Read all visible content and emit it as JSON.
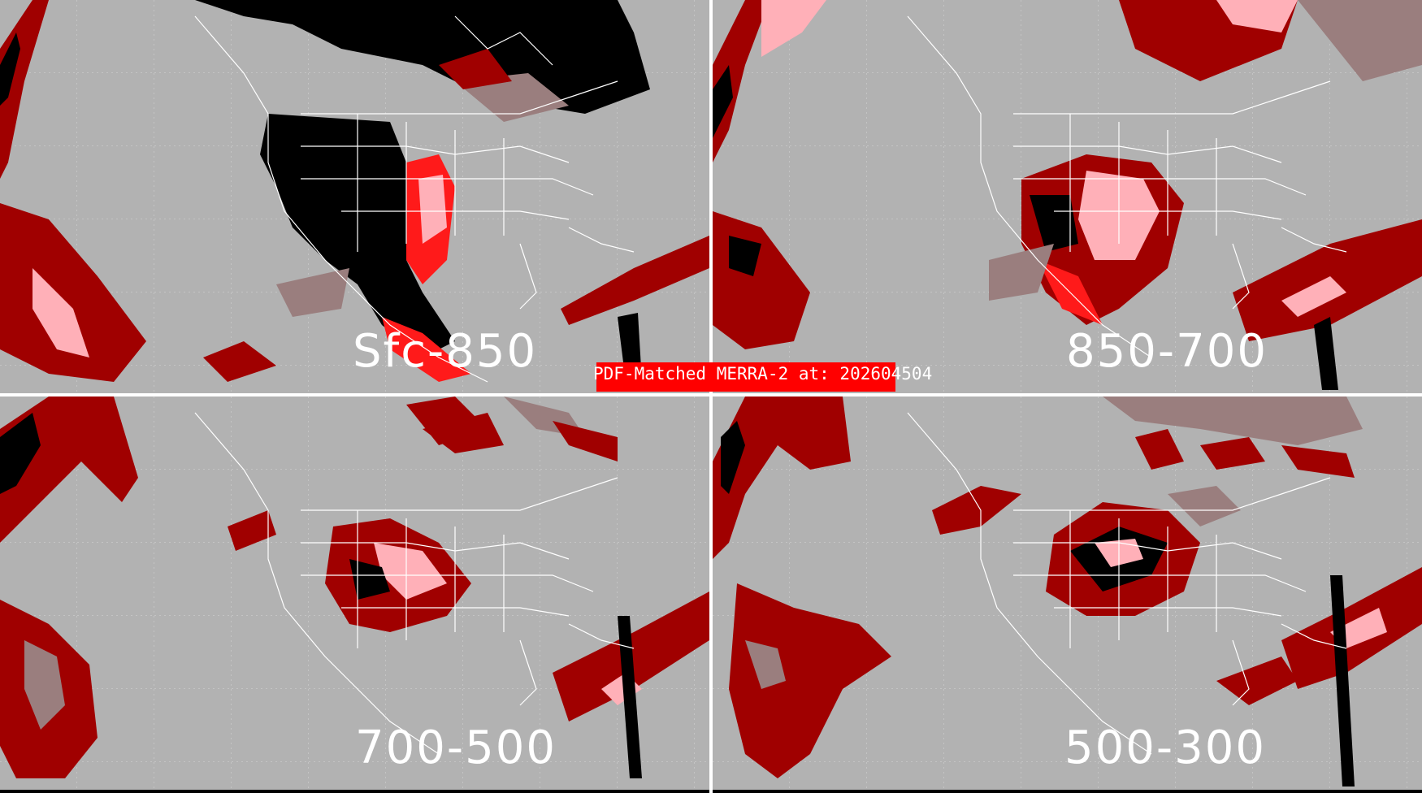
{
  "title": "PDF-Matched MERRA-2 at: 202604504",
  "panels": [
    {
      "label": "Sfc-850"
    },
    {
      "label": "850-700"
    },
    {
      "label": "700-500"
    },
    {
      "label": "500-300"
    }
  ],
  "colors": {
    "background": "#b2b2b2",
    "light": "#9a7e7e",
    "dark_red": "#a00000",
    "red": "#ff1a1a",
    "pink": "#ffb0b8",
    "black": "#000000",
    "coastline": "#ffffff",
    "title_bar": "#ff0000"
  }
}
